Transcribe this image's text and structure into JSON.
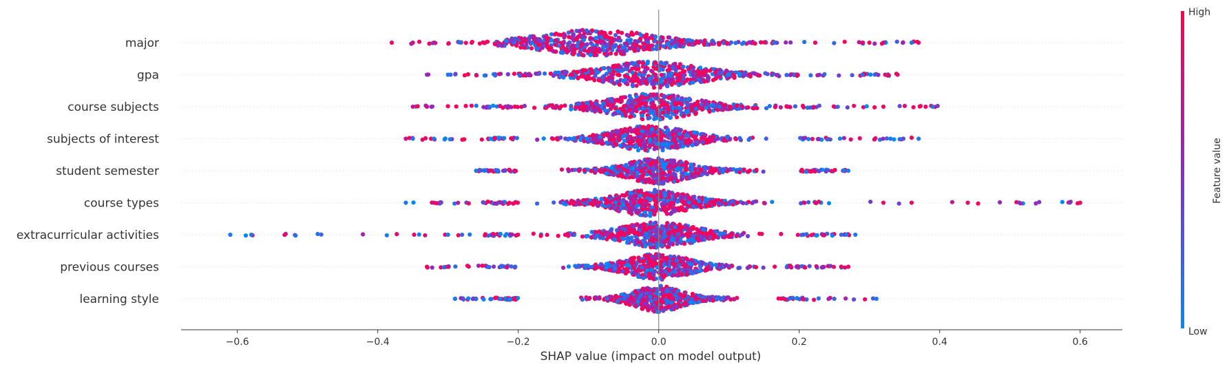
{
  "chart_data": {
    "type": "scatter",
    "subtype": "shap-beeswarm",
    "xlabel": "SHAP value (impact on model output)",
    "xlim": [
      -0.68,
      0.66
    ],
    "x_ticks": [
      -0.6,
      -0.4,
      -0.2,
      0.0,
      0.2,
      0.4,
      0.6
    ],
    "x_tick_labels": [
      "−0.6",
      "−0.4",
      "−0.2",
      "0.0",
      "0.2",
      "0.4",
      "0.6"
    ],
    "zero_line": true,
    "grid": false,
    "colorbar": {
      "label": "Feature value",
      "high_label": "High",
      "low_label": "Low",
      "high_color": "#ff0052",
      "mid_color": "#8c2bc2",
      "low_color": "#008bfb"
    },
    "features": [
      {
        "name": "major",
        "range": [
          -0.38,
          0.37
        ],
        "core_range": [
          -0.24,
          0.12
        ],
        "peak": -0.09,
        "spread": 0.09,
        "outliers": [
          [
            -0.38,
            0.9
          ],
          [
            -0.35,
            0.8
          ],
          [
            -0.32,
            0.7
          ],
          [
            0.3,
            0.9
          ],
          [
            0.32,
            0.8
          ],
          [
            0.36,
            0.1
          ],
          [
            0.37,
            0.9
          ]
        ]
      },
      {
        "name": "gpa",
        "range": [
          -0.33,
          0.34
        ],
        "core_range": [
          -0.18,
          0.18
        ],
        "peak": -0.01,
        "spread": 0.08,
        "outliers": [
          [
            -0.33,
            0.5
          ],
          [
            -0.3,
            0.1
          ],
          [
            0.29,
            0.2
          ],
          [
            0.34,
            0.9
          ]
        ]
      },
      {
        "name": "course subjects",
        "range": [
          -0.35,
          0.4
        ],
        "core_range": [
          -0.2,
          0.18
        ],
        "peak": -0.01,
        "spread": 0.07,
        "outliers": [
          [
            -0.35,
            0.8
          ],
          [
            -0.33,
            0.8
          ],
          [
            0.32,
            0.9
          ],
          [
            0.38,
            0.9
          ],
          [
            0.39,
            0.1
          ]
        ]
      },
      {
        "name": "subjects of interest",
        "range": [
          -0.36,
          0.37
        ],
        "core_range": [
          -0.2,
          0.2
        ],
        "peak": -0.01,
        "spread": 0.06,
        "outliers": [
          [
            -0.36,
            0.8
          ],
          [
            -0.35,
            0.1
          ],
          [
            -0.32,
            0.1
          ],
          [
            0.33,
            0.1
          ],
          [
            0.37,
            0.1
          ]
        ]
      },
      {
        "name": "student semester",
        "range": [
          -0.26,
          0.27
        ],
        "core_range": [
          -0.2,
          0.2
        ],
        "peak": 0.0,
        "spread": 0.05,
        "outliers": [
          [
            -0.26,
            0.1
          ],
          [
            -0.24,
            0.9
          ],
          [
            0.27,
            0.1
          ]
        ]
      },
      {
        "name": "course types",
        "range": [
          -0.36,
          0.6
        ],
        "core_range": [
          -0.2,
          0.2
        ],
        "peak": -0.01,
        "spread": 0.06,
        "outliers": [
          [
            -0.36,
            0.1
          ],
          [
            -0.32,
            0.8
          ],
          [
            0.32,
            0.9
          ],
          [
            0.36,
            0.9
          ],
          [
            0.44,
            0.9
          ],
          [
            0.6,
            0.9
          ]
        ]
      },
      {
        "name": "extracurricular activities",
        "range": [
          -0.61,
          0.28
        ],
        "core_range": [
          -0.2,
          0.2
        ],
        "peak": 0.0,
        "spread": 0.06,
        "outliers": [
          [
            -0.61,
            0.1
          ],
          [
            -0.58,
            0.1
          ],
          [
            -0.3,
            0.1
          ],
          [
            -0.28,
            0.2
          ],
          [
            0.26,
            0.2
          ],
          [
            0.28,
            0.1
          ]
        ]
      },
      {
        "name": "previous courses",
        "range": [
          -0.33,
          0.27
        ],
        "core_range": [
          -0.2,
          0.18
        ],
        "peak": 0.0,
        "spread": 0.05,
        "outliers": [
          [
            -0.33,
            0.9
          ],
          [
            -0.3,
            0.8
          ],
          [
            0.26,
            0.9
          ],
          [
            0.27,
            0.9
          ]
        ]
      },
      {
        "name": "learning style",
        "range": [
          -0.29,
          0.31
        ],
        "core_range": [
          -0.2,
          0.16
        ],
        "peak": 0.0,
        "spread": 0.04,
        "outliers": [
          [
            -0.29,
            0.1
          ],
          [
            -0.26,
            0.2
          ],
          [
            0.25,
            0.2
          ],
          [
            0.31,
            0.1
          ]
        ]
      }
    ]
  }
}
